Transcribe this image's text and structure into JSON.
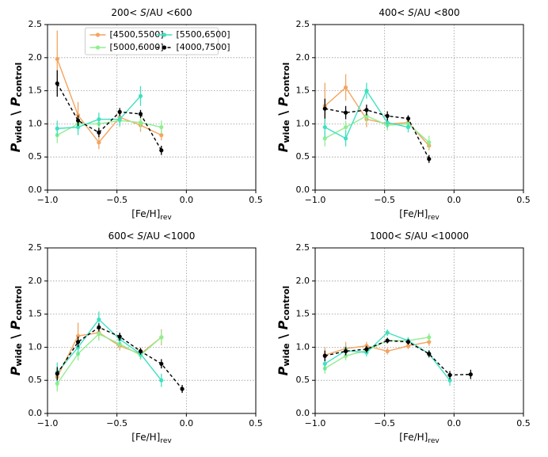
{
  "chart_data": [
    {
      "type": "line",
      "title": {
        "prefix": "200< ",
        "italic": "S",
        "suffix": "/AU <600"
      },
      "xlabel": {
        "main": "[Fe/H]",
        "sub": "rev"
      },
      "ylabel": {
        "p1": "P",
        "sub1": "wide",
        "sep": " \\ ",
        "p2": "P",
        "sub2": "control"
      },
      "x": [
        -0.93,
        -0.78,
        -0.63,
        -0.48,
        -0.33,
        -0.18
      ],
      "series": [
        {
          "name": "[4500,5500]",
          "color": "#f4a460",
          "values": [
            1.98,
            1.13,
            0.72,
            1.1,
            0.98,
            0.83
          ],
          "errors": [
            0.43,
            0.2,
            0.1,
            0.1,
            0.1,
            0.08
          ]
        },
        {
          "name": "[5000,6000]",
          "color": "#90ee90",
          "values": [
            0.83,
            1.0,
            1.0,
            1.05,
            1.02,
            0.95
          ],
          "errors": [
            0.12,
            0.12,
            0.1,
            0.1,
            0.1,
            0.1
          ]
        },
        {
          "name": "[5500,6500]",
          "color": "#40e0c0",
          "values": [
            0.93,
            0.95,
            1.07,
            1.07,
            1.42,
            null
          ],
          "errors": [
            0.12,
            0.12,
            0.1,
            0.1,
            0.15,
            null
          ]
        },
        {
          "name": "[4000,7500]",
          "color": "#000000",
          "dashed": true,
          "values": [
            1.61,
            1.05,
            0.87,
            1.18,
            1.15,
            0.6
          ],
          "errors": [
            0.2,
            0.08,
            0.07,
            0.06,
            0.06,
            0.07
          ]
        }
      ],
      "legend": "upper center",
      "xlim": [
        -1,
        0.5
      ],
      "ylim": [
        0,
        2.5
      ],
      "xticks": [
        {
          "value": -1,
          "label": "−1.0"
        },
        {
          "value": -0.5,
          "label": "−0.5"
        },
        {
          "value": 0,
          "label": "0.0"
        },
        0.5
      ],
      "yticks": [
        {
          "value": 0,
          "label": "0.0"
        },
        0.5,
        {
          "value": 1,
          "label": "1.0"
        },
        1.5,
        {
          "value": 2,
          "label": "2.0"
        },
        2.5
      ],
      "grid": true
    },
    {
      "type": "line",
      "title": {
        "prefix": "400< ",
        "italic": "S",
        "suffix": "/AU <800"
      },
      "xlabel": {
        "main": "[Fe/H]",
        "sub": "rev"
      },
      "ylabel": {
        "p1": "P",
        "sub1": "wide",
        "sep": " \\ ",
        "p2": "P",
        "sub2": "control"
      },
      "x": [
        -0.93,
        -0.78,
        -0.63,
        -0.48,
        -0.33,
        -0.18
      ],
      "series": [
        {
          "color": "#f4a460",
          "values": [
            1.27,
            1.55,
            1.07,
            1.0,
            1.02,
            0.67
          ],
          "errors": [
            0.35,
            0.2,
            0.12,
            0.08,
            0.08,
            0.07
          ]
        },
        {
          "color": "#90ee90",
          "values": [
            0.78,
            0.95,
            1.12,
            0.98,
            1.0,
            0.72
          ],
          "errors": [
            0.12,
            0.1,
            0.1,
            0.08,
            0.08,
            0.1
          ]
        },
        {
          "color": "#40e0c0",
          "values": [
            0.95,
            0.78,
            1.5,
            1.02,
            0.95,
            null
          ],
          "errors": [
            0.15,
            0.12,
            0.12,
            0.08,
            0.08,
            null
          ]
        },
        {
          "color": "#000000",
          "dashed": true,
          "values": [
            1.23,
            1.17,
            1.21,
            1.12,
            1.08,
            0.47
          ],
          "errors": [
            0.15,
            0.1,
            0.08,
            0.07,
            0.05,
            0.06
          ]
        }
      ],
      "xlim": [
        -1,
        0.5
      ],
      "ylim": [
        0,
        2.5
      ],
      "xticks": [
        {
          "value": -1,
          "label": "−1.0"
        },
        {
          "value": -0.5,
          "label": "−0.5"
        },
        {
          "value": 0,
          "label": "0.0"
        },
        0.5
      ],
      "yticks": [
        {
          "value": 0,
          "label": "0.0"
        },
        0.5,
        {
          "value": 1,
          "label": "1.0"
        },
        1.5,
        {
          "value": 2,
          "label": "2.0"
        },
        2.5
      ],
      "grid": true
    },
    {
      "type": "line",
      "title": {
        "prefix": "600< ",
        "italic": "S",
        "suffix": "/AU <1000"
      },
      "xlabel": {
        "main": "[Fe/H]",
        "sub": "rev"
      },
      "ylabel": {
        "p1": "P",
        "sub1": "wide",
        "sep": " \\ ",
        "p2": "P",
        "sub2": "control"
      },
      "x": [
        -0.93,
        -0.78,
        -0.63,
        -0.48,
        -0.33,
        -0.18,
        -0.03
      ],
      "series": [
        {
          "color": "#f4a460",
          "values": [
            0.55,
            1.17,
            1.22,
            1.02,
            0.9,
            1.15,
            null
          ],
          "errors": [
            0.15,
            0.2,
            0.1,
            0.07,
            0.07,
            0.12,
            null
          ]
        },
        {
          "color": "#90ee90",
          "values": [
            0.45,
            0.9,
            1.2,
            1.05,
            0.88,
            1.15,
            null
          ],
          "errors": [
            0.12,
            0.1,
            0.1,
            0.07,
            0.07,
            0.1,
            null
          ]
        },
        {
          "color": "#40e0c0",
          "values": [
            0.62,
            1.0,
            1.42,
            1.12,
            0.9,
            0.5,
            null
          ],
          "errors": [
            0.15,
            0.12,
            0.12,
            0.08,
            0.07,
            0.1,
            null
          ]
        },
        {
          "color": "#000000",
          "dashed": true,
          "values": [
            0.6,
            1.08,
            1.3,
            1.16,
            0.94,
            0.75,
            0.37
          ],
          "errors": [
            0.1,
            0.08,
            0.06,
            0.06,
            0.05,
            0.07,
            0.06
          ]
        }
      ],
      "xlim": [
        -1,
        0.5
      ],
      "ylim": [
        0,
        2.5
      ],
      "xticks": [
        {
          "value": -1,
          "label": "−1.0"
        },
        {
          "value": -0.5,
          "label": "−0.5"
        },
        {
          "value": 0,
          "label": "0.0"
        },
        0.5
      ],
      "yticks": [
        {
          "value": 0,
          "label": "0.0"
        },
        0.5,
        {
          "value": 1,
          "label": "1.0"
        },
        1.5,
        {
          "value": 2,
          "label": "2.0"
        },
        2.5
      ],
      "grid": true
    },
    {
      "type": "line",
      "title": {
        "prefix": "1000< ",
        "italic": "S",
        "suffix": "/AU <10000"
      },
      "xlabel": {
        "main": "[Fe/H]",
        "sub": "rev"
      },
      "ylabel": {
        "p1": "P",
        "sub1": "wide",
        "sep": " \\ ",
        "p2": "P",
        "sub2": "control"
      },
      "x": [
        -0.93,
        -0.78,
        -0.63,
        -0.48,
        -0.33,
        -0.18,
        -0.03,
        0.12
      ],
      "series": [
        {
          "color": "#f4a460",
          "values": [
            0.88,
            0.98,
            1.02,
            0.94,
            1.02,
            1.08,
            null,
            null
          ],
          "errors": [
            0.12,
            0.1,
            0.06,
            0.05,
            0.05,
            0.06,
            null,
            null
          ]
        },
        {
          "color": "#90ee90",
          "values": [
            0.68,
            0.87,
            0.95,
            1.1,
            1.1,
            1.15,
            null,
            null
          ],
          "errors": [
            0.08,
            0.07,
            0.06,
            0.05,
            0.05,
            0.06,
            null,
            null
          ]
        },
        {
          "color": "#40e0c0",
          "values": [
            0.75,
            0.95,
            0.92,
            1.22,
            1.1,
            0.9,
            0.5,
            null
          ],
          "errors": [
            0.1,
            0.08,
            0.06,
            0.05,
            0.05,
            0.06,
            0.08,
            null
          ]
        },
        {
          "color": "#000000",
          "dashed": true,
          "values": [
            0.87,
            0.94,
            0.97,
            1.1,
            1.08,
            0.9,
            0.58,
            0.59
          ],
          "errors": [
            0.08,
            0.06,
            0.05,
            0.04,
            0.04,
            0.05,
            0.06,
            0.07
          ]
        }
      ],
      "xlim": [
        -1,
        0.5
      ],
      "ylim": [
        0,
        2.5
      ],
      "xticks": [
        {
          "value": -1,
          "label": "−1.0"
        },
        {
          "value": -0.5,
          "label": "−0.5"
        },
        {
          "value": 0,
          "label": "0.0"
        },
        0.5
      ],
      "yticks": [
        {
          "value": 0,
          "label": "0.0"
        },
        0.5,
        {
          "value": 1,
          "label": "1.0"
        },
        1.5,
        {
          "value": 2,
          "label": "2.0"
        },
        2.5
      ],
      "grid": true
    }
  ]
}
